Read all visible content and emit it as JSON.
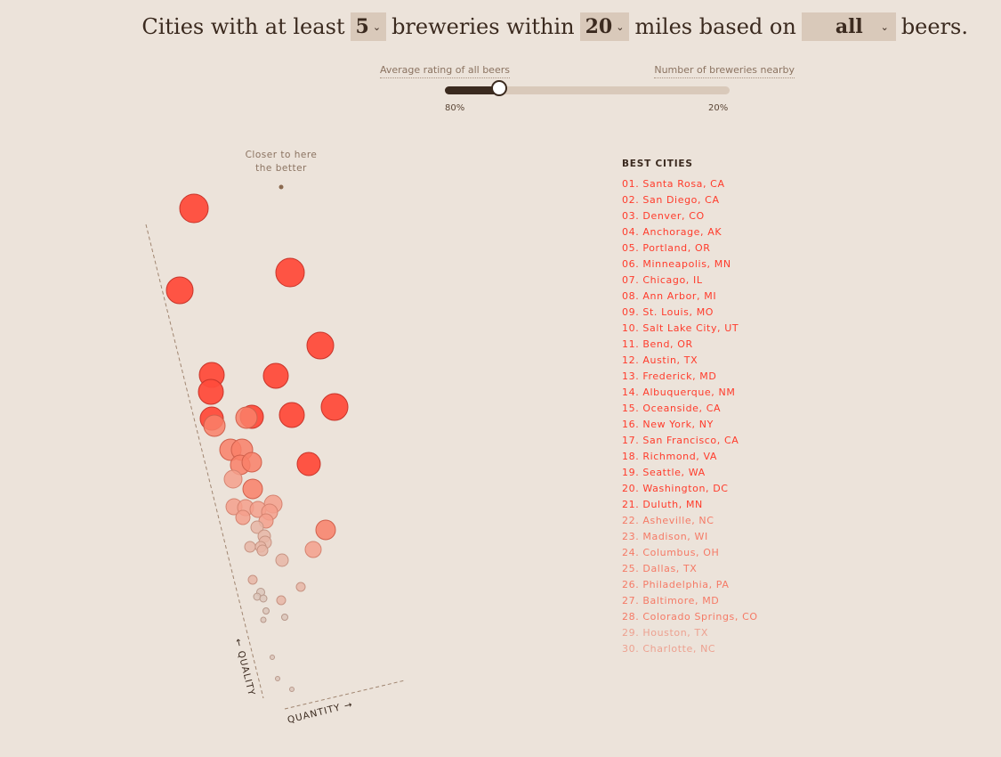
{
  "headline": {
    "part1": "Cities with at least",
    "min_breweries": "5",
    "part2": "breweries within",
    "miles": "20",
    "part3": "miles based on",
    "beer_filter": "all",
    "part4": "beers."
  },
  "slider": {
    "left_label": "Average rating of all beers",
    "right_label": "Number of breweries nearby",
    "left_value": "80%",
    "right_value": "20%",
    "position": 0.19
  },
  "chart": {
    "target_note_line1": "Closer to here",
    "target_note_line2": "the better",
    "y_axis_label": "← QUALITY",
    "x_axis_label": "QUANTITY →"
  },
  "colors": {
    "accent": "#ff4c3c",
    "dark": "#3b2a1f",
    "muted": "#c4b3a6"
  },
  "best_cities": {
    "title": "BEST CITIES",
    "items": [
      "01. Santa Rosa, CA",
      "02. San Diego, CA",
      "03. Denver, CO",
      "04. Anchorage, AK",
      "05. Portland, OR",
      "06. Minneapolis, MN",
      "07. Chicago, IL",
      "08. Ann Arbor, MI",
      "09. St. Louis, MO",
      "10. Salt Lake City, UT",
      "11. Bend, OR",
      "12. Austin, TX",
      "13. Frederick, MD",
      "14. Albuquerque, NM",
      "15. Oceanside, CA",
      "16. New York, NY",
      "17. San Francisco, CA",
      "18. Richmond, VA",
      "19. Seattle, WA",
      "20. Washington, DC",
      "21. Duluth, MN",
      "22. Asheville, NC",
      "23. Madison, WI",
      "24. Columbus, OH",
      "25. Dallas, TX",
      "26. Philadelphia, PA",
      "27. Baltimore, MD",
      "28. Colorado Springs, CO",
      "29. Houston, TX",
      "30. Charlotte, NC"
    ]
  }
}
